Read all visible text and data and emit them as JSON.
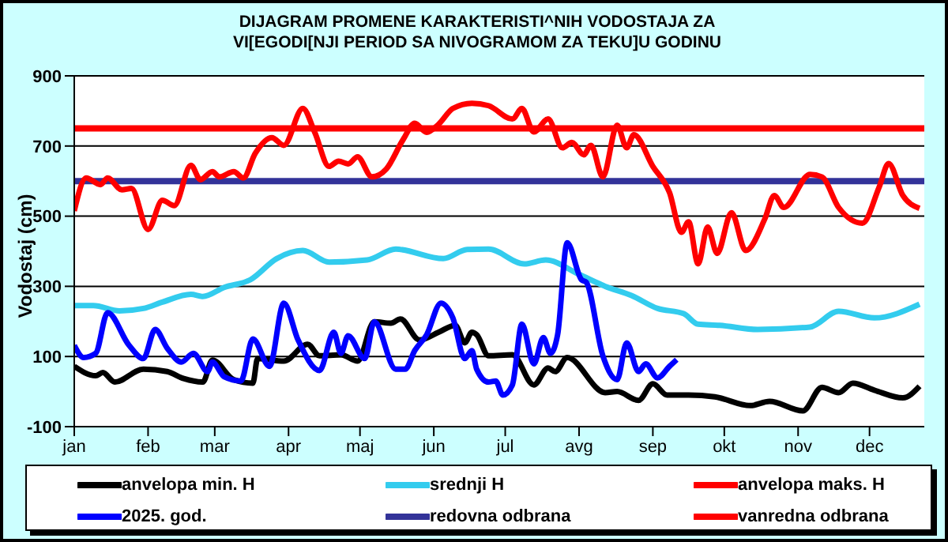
{
  "chart_data": {
    "type": "line",
    "title": "DIJAGRAM PROMENE  KARAKTERISTI^NIH  VODOSTAJA ZA VI[EGODI[NJI PERIOD  SA NIVOGRAMOM ZA TEKU]U  GODINU",
    "ylabel": "Vodostaj (cm)",
    "xlim": [
      "--01-01",
      "--12-24"
    ],
    "xticks": [
      {
        "value": "--01-01",
        "label": "jan"
      },
      {
        "value": "--02-01",
        "label": "feb"
      },
      {
        "value": "--03-01",
        "label": "mar"
      },
      {
        "value": "--04-01",
        "label": "apr"
      },
      {
        "value": "--05-01",
        "label": "maj"
      },
      {
        "value": "--06-01",
        "label": "jun"
      },
      {
        "value": "--07-01",
        "label": "jul"
      },
      {
        "value": "--08-01",
        "label": "avg"
      },
      {
        "value": "--09-01",
        "label": "sep"
      },
      {
        "value": "--10-01",
        "label": "okt"
      },
      {
        "value": "--11-01",
        "label": "nov"
      },
      {
        "value": "--12-01",
        "label": "dec"
      }
    ],
    "ylim": [
      -100,
      900
    ],
    "yticks": [
      -100,
      100,
      300,
      500,
      700,
      900
    ],
    "grid": "y",
    "legend": "bottom",
    "marker": "none",
    "line_style": "solid",
    "series": [
      {
        "name": "anvelopa min. H",
        "color": "#000000",
        "x": [
          "--01-01",
          "--01-10",
          "--01-13",
          "--01-18",
          "--01-30",
          "--02-09",
          "--02-16",
          "--02-24",
          "--02-28",
          "--03-09",
          "--03-17",
          "--03-19",
          "--03-30",
          "--04-09",
          "--04-14",
          "--04-23",
          "--04-30",
          "--05-07",
          "--05-14",
          "--05-18",
          "--05-26",
          "--06-03",
          "--06-10",
          "--06-14",
          "--06-17",
          "--06-19",
          "--06-24",
          "--07-04",
          "--07-13",
          "--07-19",
          "--07-22",
          "--07-27",
          "--08-12",
          "--08-17",
          "--08-26",
          "--09-01",
          "--09-07",
          "--09-16",
          "--09-27",
          "--10-12",
          "--10-20",
          "--11-03",
          "--11-11",
          "--11-18",
          "--11-24",
          "--12-03",
          "--12-15",
          "--12-22"
        ],
        "values": [
          72,
          45,
          54,
          27,
          64,
          57,
          37,
          27,
          90,
          34,
          24,
          94,
          87,
          135,
          102,
          105,
          87,
          199,
          195,
          207,
          147,
          169,
          189,
          139,
          169,
          162,
          102,
          105,
          19,
          67,
          57,
          97,
          -3,
          0,
          -25,
          22,
          -10,
          -10,
          -15,
          -40,
          -28,
          -55,
          12,
          -3,
          24,
          4,
          -18,
          15
        ]
      },
      {
        "name": "srednji H",
        "color": "#33ccee",
        "x": [
          "--01-01",
          "--01-09",
          "--01-20",
          "--01-30",
          "--02-07",
          "--02-19",
          "--02-24",
          "--03-05",
          "--03-16",
          "--03-27",
          "--04-07",
          "--04-18",
          "--05-04",
          "--05-16",
          "--06-05",
          "--06-15",
          "--06-24",
          "--07-09",
          "--07-18",
          "--08-01",
          "--08-12",
          "--08-23",
          "--09-03",
          "--09-14",
          "--09-20",
          "--09-29",
          "--10-15",
          "--11-06",
          "--11-18",
          "--12-03",
          "--12-22"
        ],
        "values": [
          245,
          245,
          230,
          237,
          255,
          277,
          271,
          297,
          319,
          379,
          402,
          369,
          375,
          406,
          379,
          405,
          406,
          364,
          375,
          334,
          300,
          274,
          237,
          222,
          192,
          189,
          177,
          184,
          229,
          210,
          249
        ]
      },
      {
        "name": "anvelopa maks. H",
        "color": "#ff0000",
        "x": [
          "--01-01",
          "--01-06",
          "--01-12",
          "--01-15",
          "--01-21",
          "--01-25",
          "--02-01",
          "--02-07",
          "--02-12",
          "--02-19",
          "--02-23",
          "--02-28",
          "--03-03",
          "--03-09",
          "--03-13",
          "--03-18",
          "--03-25",
          "--03-30",
          "--04-07",
          "--04-12",
          "--04-18",
          "--04-22",
          "--04-26",
          "--04-30",
          "--05-06",
          "--05-12",
          "--05-19",
          "--05-24",
          "--05-29",
          "--06-03",
          "--06-09",
          "--06-17",
          "--06-24",
          "--07-04",
          "--07-08",
          "--07-13",
          "--07-19",
          "--07-25",
          "--07-29",
          "--08-03",
          "--08-06",
          "--08-11",
          "--08-17",
          "--08-21",
          "--08-24",
          "--09-01",
          "--09-08",
          "--09-13",
          "--09-16",
          "--09-20",
          "--09-24",
          "--09-28",
          "--10-04",
          "--10-10",
          "--10-18",
          "--10-22",
          "--10-26",
          "--11-06",
          "--11-11",
          "--11-18",
          "--11-28",
          "--12-05",
          "--12-09",
          "--12-15",
          "--12-22"
        ],
        "values": [
          515,
          609,
          590,
          609,
          575,
          579,
          462,
          545,
          530,
          645,
          604,
          627,
          612,
          627,
          609,
          679,
          724,
          702,
          807,
          739,
          642,
          657,
          649,
          669,
          612,
          634,
          717,
          765,
          739,
          762,
          807,
          822,
          815,
          777,
          807,
          740,
          777,
          695,
          710,
          675,
          702,
          612,
          759,
          695,
          732,
          642,
          567,
          454,
          484,
          364,
          469,
          394,
          510,
          402,
          492,
          559,
          525,
          619,
          612,
          525,
          480,
          582,
          650,
          559,
          522
        ]
      },
      {
        "name": "2025. god.",
        "color": "#0000ff",
        "x": [
          "--01-01",
          "--01-05",
          "--01-10",
          "--01-15",
          "--01-24",
          "--01-30",
          "--02-04",
          "--02-09",
          "--02-15",
          "--02-20",
          "--02-26",
          "--02-28",
          "--03-05",
          "--03-12",
          "--03-17",
          "--03-24",
          "--03-30",
          "--04-05",
          "--04-14",
          "--04-20",
          "--04-23",
          "--04-26",
          "--05-03",
          "--05-07",
          "--05-16",
          "--05-20",
          "--05-24",
          "--05-29",
          "--06-04",
          "--06-09",
          "--06-14",
          "--06-17",
          "--06-19",
          "--06-24",
          "--06-27",
          "--06-30",
          "--07-04",
          "--07-08",
          "--07-13",
          "--07-17",
          "--07-20",
          "--07-23",
          "--07-27",
          "--08-02",
          "--08-04",
          "--08-11",
          "--08-17",
          "--08-21",
          "--08-26",
          "--08-29",
          "--09-03",
          "--09-08",
          "--09-11"
        ],
        "values": [
          132,
          97,
          109,
          225,
          132,
          94,
          177,
          124,
          84,
          109,
          57,
          84,
          42,
          30,
          150,
          72,
          252,
          147,
          60,
          169,
          109,
          159,
          94,
          199,
          64,
          64,
          117,
          162,
          252,
          210,
          94,
          117,
          64,
          27,
          30,
          -10,
          19,
          192,
          79,
          154,
          109,
          162,
          424,
          319,
          312,
          102,
          34,
          139,
          57,
          79,
          39,
          72,
          91
        ]
      }
    ],
    "ref_lines": [
      {
        "axis": "y",
        "value": 600,
        "label": "redovna odbrana",
        "color": "#333399"
      },
      {
        "axis": "y",
        "value": 750,
        "label": "vanredna odbrana",
        "color": "#ff0000"
      }
    ]
  }
}
